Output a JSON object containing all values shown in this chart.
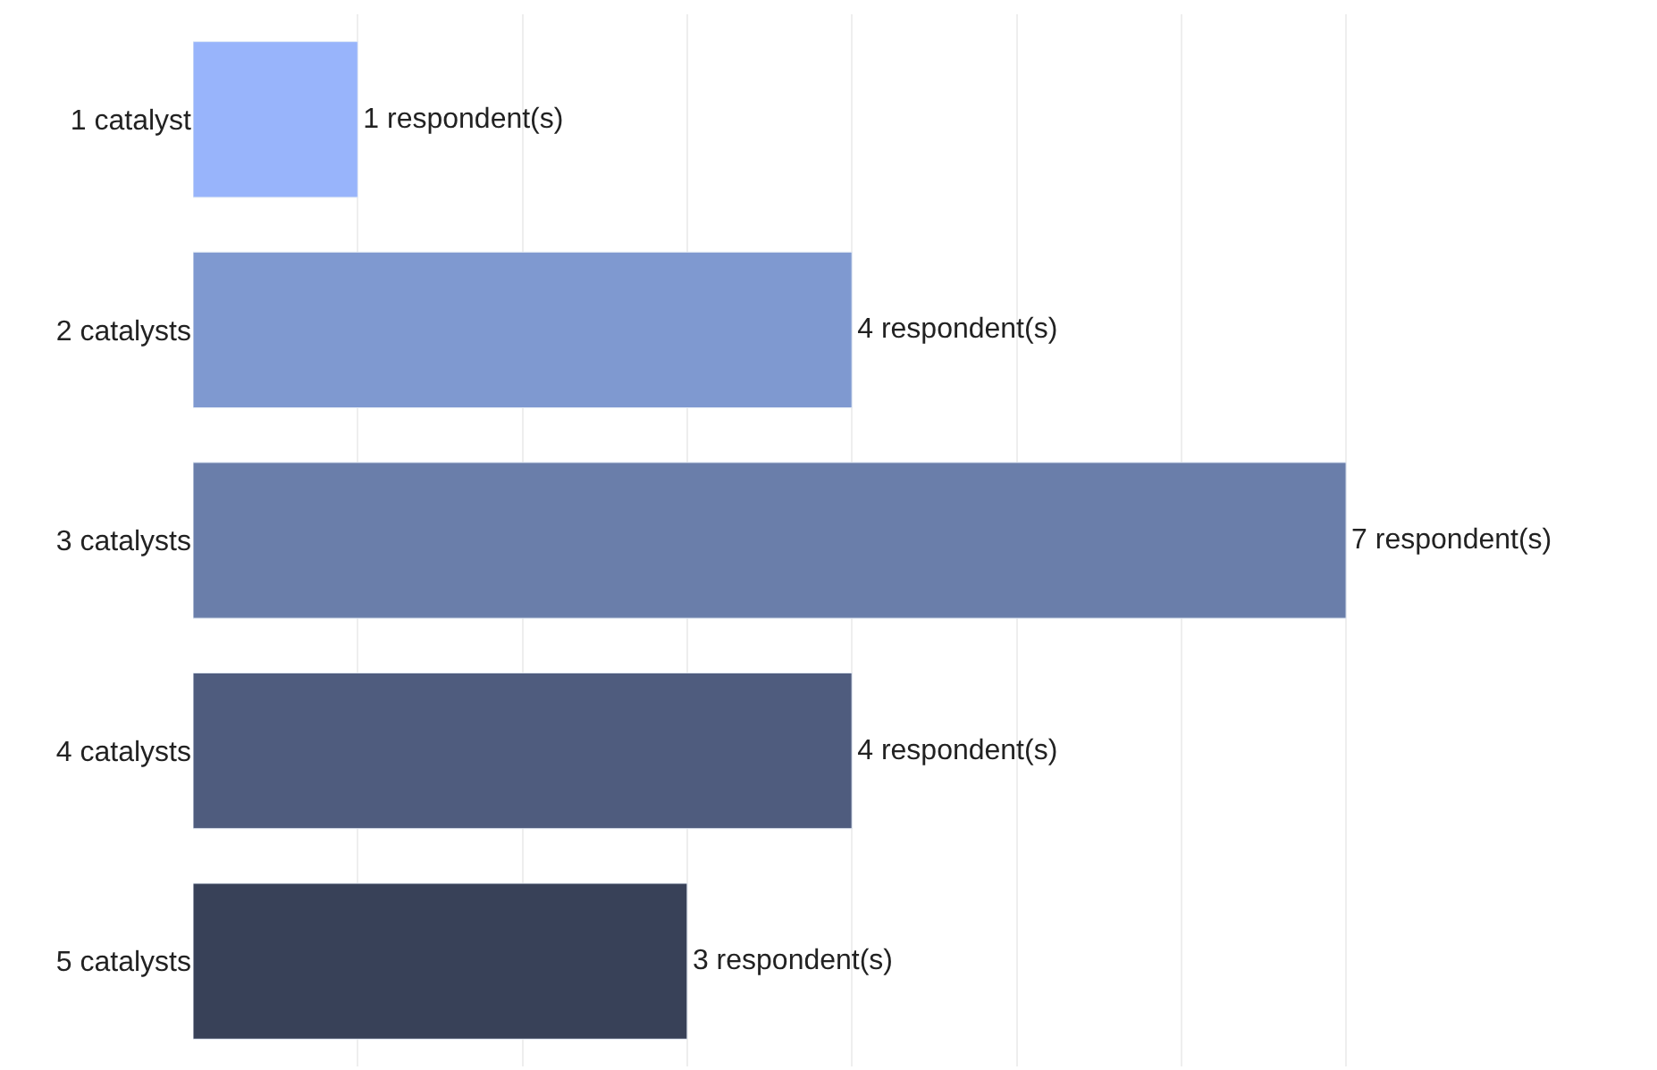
{
  "chart_data": {
    "type": "bar",
    "orientation": "horizontal",
    "categories": [
      "1 catalyst",
      "2 catalysts",
      "3 catalysts",
      "4 catalysts",
      "5 catalysts"
    ],
    "values": [
      1,
      4,
      7,
      4,
      3
    ],
    "colors": [
      "#98b4fb",
      "#7f99d0",
      "#6a7eaa",
      "#4f5c7e",
      "#384158"
    ],
    "value_labels": [
      "1 respondent(s)",
      "4 respondent(s)",
      "7 respondent(s)",
      "4 respondent(s)",
      "3 respondent(s)"
    ],
    "grid": "x",
    "tick_labels": "y"
  }
}
